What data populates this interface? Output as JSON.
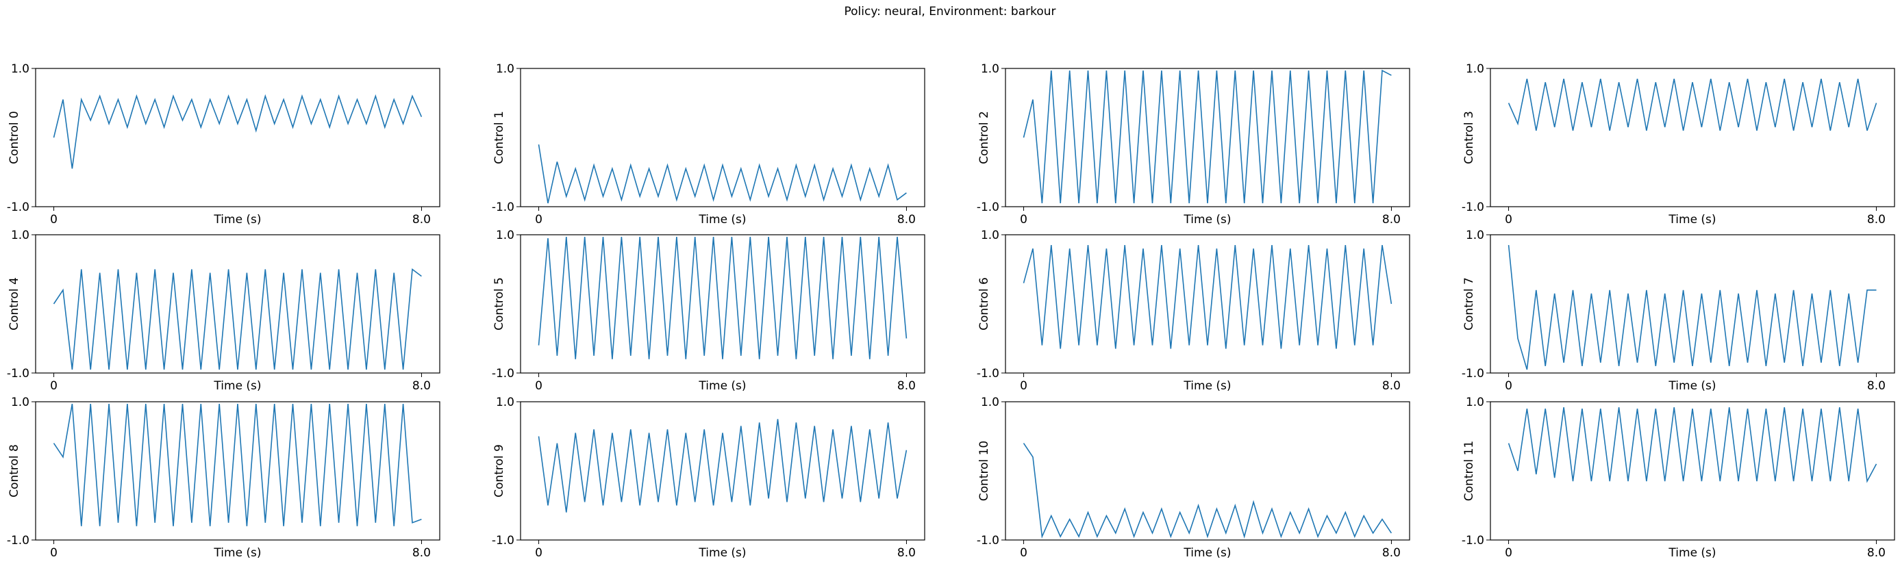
{
  "figure": {
    "title": "Policy: neural, Environment: barkour",
    "line_color": "#1f77b4"
  },
  "chart_data": {
    "type": "line",
    "grid": false,
    "x_range": [
      0,
      8.0
    ],
    "y_range": [
      -1.0,
      1.0
    ],
    "panels": [
      {
        "ylabel": "Control 0",
        "xlabel": "Time (s)",
        "xticks": [
          "0",
          "8.0"
        ],
        "yticks": [
          "-1.0",
          "1.0"
        ],
        "x": [
          0,
          0.2,
          0.4,
          0.6,
          0.8,
          1.0,
          1.2,
          1.4,
          1.6,
          1.8,
          2.0,
          2.2,
          2.4,
          2.6,
          2.8,
          3.0,
          3.2,
          3.4,
          3.6,
          3.8,
          4.0,
          4.2,
          4.4,
          4.6,
          4.8,
          5.0,
          5.2,
          5.4,
          5.6,
          5.8,
          6.0,
          6.2,
          6.4,
          6.6,
          6.8,
          7.0,
          7.2,
          7.4,
          7.6,
          7.8,
          8.0
        ],
        "y": [
          0.0,
          0.55,
          -0.45,
          0.55,
          0.25,
          0.6,
          0.2,
          0.55,
          0.15,
          0.6,
          0.2,
          0.55,
          0.15,
          0.6,
          0.25,
          0.55,
          0.15,
          0.55,
          0.2,
          0.6,
          0.2,
          0.55,
          0.1,
          0.6,
          0.2,
          0.55,
          0.15,
          0.6,
          0.2,
          0.55,
          0.15,
          0.6,
          0.2,
          0.55,
          0.2,
          0.6,
          0.15,
          0.55,
          0.2,
          0.6,
          0.3
        ]
      },
      {
        "ylabel": "Control 1",
        "xlabel": "Time (s)",
        "xticks": [
          "0",
          "8.0"
        ],
        "yticks": [
          "-1.0",
          "1.0"
        ],
        "x": [
          0,
          0.2,
          0.4,
          0.6,
          0.8,
          1.0,
          1.2,
          1.4,
          1.6,
          1.8,
          2.0,
          2.2,
          2.4,
          2.6,
          2.8,
          3.0,
          3.2,
          3.4,
          3.6,
          3.8,
          4.0,
          4.2,
          4.4,
          4.6,
          4.8,
          5.0,
          5.2,
          5.4,
          5.6,
          5.8,
          6.0,
          6.2,
          6.4,
          6.6,
          6.8,
          7.0,
          7.2,
          7.4,
          7.6,
          7.8,
          8.0
        ],
        "y": [
          -0.1,
          -0.95,
          -0.35,
          -0.85,
          -0.45,
          -0.9,
          -0.4,
          -0.85,
          -0.45,
          -0.9,
          -0.4,
          -0.85,
          -0.45,
          -0.85,
          -0.4,
          -0.9,
          -0.45,
          -0.85,
          -0.4,
          -0.9,
          -0.4,
          -0.85,
          -0.45,
          -0.9,
          -0.4,
          -0.85,
          -0.45,
          -0.9,
          -0.4,
          -0.85,
          -0.4,
          -0.9,
          -0.45,
          -0.85,
          -0.4,
          -0.9,
          -0.45,
          -0.85,
          -0.4,
          -0.9,
          -0.8
        ]
      },
      {
        "ylabel": "Control 2",
        "xlabel": "Time (s)",
        "xticks": [
          "0",
          "8.0"
        ],
        "yticks": [
          "-1.0",
          "1.0"
        ],
        "x": [
          0,
          0.2,
          0.4,
          0.6,
          0.8,
          1.0,
          1.2,
          1.4,
          1.6,
          1.8,
          2.0,
          2.2,
          2.4,
          2.6,
          2.8,
          3.0,
          3.2,
          3.4,
          3.6,
          3.8,
          4.0,
          4.2,
          4.4,
          4.6,
          4.8,
          5.0,
          5.2,
          5.4,
          5.6,
          5.8,
          6.0,
          6.2,
          6.4,
          6.6,
          6.8,
          7.0,
          7.2,
          7.4,
          7.6,
          7.8,
          8.0
        ],
        "y": [
          0.0,
          0.55,
          -0.95,
          0.97,
          -0.95,
          0.97,
          -0.95,
          0.97,
          -0.95,
          0.97,
          -0.95,
          0.97,
          -0.95,
          0.97,
          -0.95,
          0.97,
          -0.95,
          0.97,
          -0.95,
          0.97,
          -0.95,
          0.97,
          -0.95,
          0.97,
          -0.95,
          0.97,
          -0.95,
          0.97,
          -0.95,
          0.97,
          -0.95,
          0.97,
          -0.95,
          0.97,
          -0.95,
          0.97,
          -0.95,
          0.97,
          -0.95,
          0.97,
          0.9
        ]
      },
      {
        "ylabel": "Control 3",
        "xlabel": "Time (s)",
        "xticks": [
          "0",
          "8.0"
        ],
        "yticks": [
          "-1.0",
          "1.0"
        ],
        "x": [
          0,
          0.2,
          0.4,
          0.6,
          0.8,
          1.0,
          1.2,
          1.4,
          1.6,
          1.8,
          2.0,
          2.2,
          2.4,
          2.6,
          2.8,
          3.0,
          3.2,
          3.4,
          3.6,
          3.8,
          4.0,
          4.2,
          4.4,
          4.6,
          4.8,
          5.0,
          5.2,
          5.4,
          5.6,
          5.8,
          6.0,
          6.2,
          6.4,
          6.6,
          6.8,
          7.0,
          7.2,
          7.4,
          7.6,
          7.8,
          8.0
        ],
        "y": [
          0.5,
          0.2,
          0.85,
          0.1,
          0.8,
          0.15,
          0.85,
          0.1,
          0.8,
          0.15,
          0.85,
          0.1,
          0.8,
          0.15,
          0.85,
          0.1,
          0.8,
          0.15,
          0.85,
          0.1,
          0.8,
          0.15,
          0.85,
          0.1,
          0.8,
          0.15,
          0.85,
          0.1,
          0.8,
          0.15,
          0.85,
          0.1,
          0.8,
          0.15,
          0.85,
          0.1,
          0.8,
          0.15,
          0.85,
          0.1,
          0.5
        ]
      },
      {
        "ylabel": "Control 4",
        "xlabel": "Time (s)",
        "xticks": [
          "0",
          "8.0"
        ],
        "yticks": [
          "-1.0",
          "1.0"
        ],
        "x": [
          0,
          0.2,
          0.4,
          0.6,
          0.8,
          1.0,
          1.2,
          1.4,
          1.6,
          1.8,
          2.0,
          2.2,
          2.4,
          2.6,
          2.8,
          3.0,
          3.2,
          3.4,
          3.6,
          3.8,
          4.0,
          4.2,
          4.4,
          4.6,
          4.8,
          5.0,
          5.2,
          5.4,
          5.6,
          5.8,
          6.0,
          6.2,
          6.4,
          6.6,
          6.8,
          7.0,
          7.2,
          7.4,
          7.6,
          7.8,
          8.0
        ],
        "y": [
          0.0,
          0.2,
          -0.95,
          0.5,
          -0.95,
          0.45,
          -0.95,
          0.5,
          -0.95,
          0.45,
          -0.95,
          0.5,
          -0.95,
          0.45,
          -0.95,
          0.5,
          -0.95,
          0.45,
          -0.95,
          0.5,
          -0.95,
          0.45,
          -0.95,
          0.5,
          -0.95,
          0.45,
          -0.95,
          0.5,
          -0.95,
          0.45,
          -0.95,
          0.5,
          -0.95,
          0.45,
          -0.95,
          0.5,
          -0.95,
          0.45,
          -0.95,
          0.5,
          0.4
        ]
      },
      {
        "ylabel": "Control 5",
        "xlabel": "Time (s)",
        "xticks": [
          "0",
          "8.0"
        ],
        "yticks": [
          "-1.0",
          "1.0"
        ],
        "x": [
          0,
          0.2,
          0.4,
          0.6,
          0.8,
          1.0,
          1.2,
          1.4,
          1.6,
          1.8,
          2.0,
          2.2,
          2.4,
          2.6,
          2.8,
          3.0,
          3.2,
          3.4,
          3.6,
          3.8,
          4.0,
          4.2,
          4.4,
          4.6,
          4.8,
          5.0,
          5.2,
          5.4,
          5.6,
          5.8,
          6.0,
          6.2,
          6.4,
          6.6,
          6.8,
          7.0,
          7.2,
          7.4,
          7.6,
          7.8,
          8.0
        ],
        "y": [
          -0.6,
          0.95,
          -0.75,
          0.97,
          -0.8,
          0.97,
          -0.75,
          0.97,
          -0.8,
          0.97,
          -0.75,
          0.97,
          -0.8,
          0.97,
          -0.75,
          0.97,
          -0.8,
          0.97,
          -0.75,
          0.97,
          -0.8,
          0.97,
          -0.75,
          0.97,
          -0.8,
          0.97,
          -0.75,
          0.97,
          -0.8,
          0.97,
          -0.75,
          0.97,
          -0.8,
          0.97,
          -0.75,
          0.97,
          -0.8,
          0.97,
          -0.75,
          0.97,
          -0.5
        ]
      },
      {
        "ylabel": "Control 6",
        "xlabel": "Time (s)",
        "xticks": [
          "0",
          "8.0"
        ],
        "yticks": [
          "-1.0",
          "1.0"
        ],
        "x": [
          0,
          0.2,
          0.4,
          0.6,
          0.8,
          1.0,
          1.2,
          1.4,
          1.6,
          1.8,
          2.0,
          2.2,
          2.4,
          2.6,
          2.8,
          3.0,
          3.2,
          3.4,
          3.6,
          3.8,
          4.0,
          4.2,
          4.4,
          4.6,
          4.8,
          5.0,
          5.2,
          5.4,
          5.6,
          5.8,
          6.0,
          6.2,
          6.4,
          6.6,
          6.8,
          7.0,
          7.2,
          7.4,
          7.6,
          7.8,
          8.0
        ],
        "y": [
          0.3,
          0.8,
          -0.6,
          0.85,
          -0.65,
          0.8,
          -0.6,
          0.85,
          -0.6,
          0.8,
          -0.65,
          0.85,
          -0.6,
          0.8,
          -0.6,
          0.85,
          -0.65,
          0.8,
          -0.6,
          0.85,
          -0.6,
          0.8,
          -0.65,
          0.85,
          -0.6,
          0.8,
          -0.6,
          0.85,
          -0.65,
          0.8,
          -0.6,
          0.85,
          -0.6,
          0.8,
          -0.65,
          0.85,
          -0.6,
          0.8,
          -0.6,
          0.85,
          0.0
        ]
      },
      {
        "ylabel": "Control 7",
        "xlabel": "Time (s)",
        "xticks": [
          "0",
          "8.0"
        ],
        "yticks": [
          "-1.0",
          "1.0"
        ],
        "x": [
          0,
          0.2,
          0.4,
          0.6,
          0.8,
          1.0,
          1.2,
          1.4,
          1.6,
          1.8,
          2.0,
          2.2,
          2.4,
          2.6,
          2.8,
          3.0,
          3.2,
          3.4,
          3.6,
          3.8,
          4.0,
          4.2,
          4.4,
          4.6,
          4.8,
          5.0,
          5.2,
          5.4,
          5.6,
          5.8,
          6.0,
          6.2,
          6.4,
          6.6,
          6.8,
          7.0,
          7.2,
          7.4,
          7.6,
          7.8,
          8.0
        ],
        "y": [
          0.85,
          -0.5,
          -0.95,
          0.2,
          -0.9,
          0.15,
          -0.85,
          0.2,
          -0.9,
          0.15,
          -0.85,
          0.2,
          -0.9,
          0.15,
          -0.85,
          0.2,
          -0.9,
          0.15,
          -0.85,
          0.2,
          -0.9,
          0.15,
          -0.85,
          0.2,
          -0.9,
          0.15,
          -0.85,
          0.2,
          -0.9,
          0.15,
          -0.85,
          0.2,
          -0.9,
          0.15,
          -0.85,
          0.2,
          -0.9,
          0.15,
          -0.85,
          0.2,
          0.2
        ]
      },
      {
        "ylabel": "Control 8",
        "xlabel": "Time (s)",
        "xticks": [
          "0",
          "8.0"
        ],
        "yticks": [
          "-1.0",
          "1.0"
        ],
        "x": [
          0,
          0.2,
          0.4,
          0.6,
          0.8,
          1.0,
          1.2,
          1.4,
          1.6,
          1.8,
          2.0,
          2.2,
          2.4,
          2.6,
          2.8,
          3.0,
          3.2,
          3.4,
          3.6,
          3.8,
          4.0,
          4.2,
          4.4,
          4.6,
          4.8,
          5.0,
          5.2,
          5.4,
          5.6,
          5.8,
          6.0,
          6.2,
          6.4,
          6.6,
          6.8,
          7.0,
          7.2,
          7.4,
          7.6,
          7.8,
          8.0
        ],
        "y": [
          0.4,
          0.2,
          0.97,
          -0.8,
          0.97,
          -0.8,
          0.97,
          -0.75,
          0.97,
          -0.8,
          0.97,
          -0.75,
          0.97,
          -0.8,
          0.97,
          -0.75,
          0.97,
          -0.8,
          0.97,
          -0.75,
          0.97,
          -0.8,
          0.97,
          -0.75,
          0.97,
          -0.8,
          0.97,
          -0.75,
          0.97,
          -0.8,
          0.97,
          -0.75,
          0.97,
          -0.8,
          0.97,
          -0.75,
          0.97,
          -0.8,
          0.97,
          -0.75,
          -0.7
        ]
      },
      {
        "ylabel": "Control 9",
        "xlabel": "Time (s)",
        "xticks": [
          "0",
          "8.0"
        ],
        "yticks": [
          "-1.0",
          "1.0"
        ],
        "x": [
          0,
          0.2,
          0.4,
          0.6,
          0.8,
          1.0,
          1.2,
          1.4,
          1.6,
          1.8,
          2.0,
          2.2,
          2.4,
          2.6,
          2.8,
          3.0,
          3.2,
          3.4,
          3.6,
          3.8,
          4.0,
          4.2,
          4.4,
          4.6,
          4.8,
          5.0,
          5.2,
          5.4,
          5.6,
          5.8,
          6.0,
          6.2,
          6.4,
          6.6,
          6.8,
          7.0,
          7.2,
          7.4,
          7.6,
          7.8,
          8.0
        ],
        "y": [
          0.5,
          -0.5,
          0.4,
          -0.6,
          0.55,
          -0.45,
          0.6,
          -0.5,
          0.55,
          -0.45,
          0.6,
          -0.5,
          0.55,
          -0.45,
          0.6,
          -0.5,
          0.55,
          -0.45,
          0.6,
          -0.5,
          0.55,
          -0.45,
          0.65,
          -0.5,
          0.7,
          -0.4,
          0.75,
          -0.45,
          0.7,
          -0.4,
          0.65,
          -0.45,
          0.6,
          -0.4,
          0.65,
          -0.45,
          0.6,
          -0.4,
          0.7,
          -0.4,
          0.3
        ]
      },
      {
        "ylabel": "Control 10",
        "xlabel": "Time (s)",
        "xticks": [
          "0",
          "8.0"
        ],
        "yticks": [
          "-1.0",
          "1.0"
        ],
        "x": [
          0,
          0.2,
          0.4,
          0.6,
          0.8,
          1.0,
          1.2,
          1.4,
          1.6,
          1.8,
          2.0,
          2.2,
          2.4,
          2.6,
          2.8,
          3.0,
          3.2,
          3.4,
          3.6,
          3.8,
          4.0,
          4.2,
          4.4,
          4.6,
          4.8,
          5.0,
          5.2,
          5.4,
          5.6,
          5.8,
          6.0,
          6.2,
          6.4,
          6.6,
          6.8,
          7.0,
          7.2,
          7.4,
          7.6,
          7.8,
          8.0
        ],
        "y": [
          0.4,
          0.2,
          -0.95,
          -0.65,
          -0.95,
          -0.7,
          -0.95,
          -0.6,
          -0.95,
          -0.65,
          -0.9,
          -0.55,
          -0.95,
          -0.6,
          -0.9,
          -0.55,
          -0.95,
          -0.6,
          -0.9,
          -0.5,
          -0.95,
          -0.55,
          -0.9,
          -0.5,
          -0.95,
          -0.45,
          -0.9,
          -0.55,
          -0.95,
          -0.6,
          -0.9,
          -0.55,
          -0.95,
          -0.65,
          -0.9,
          -0.6,
          -0.95,
          -0.65,
          -0.9,
          -0.7,
          -0.9
        ]
      },
      {
        "ylabel": "Control 11",
        "xlabel": "Time (s)",
        "xticks": [
          "0",
          "8.0"
        ],
        "yticks": [
          "-1.0",
          "1.0"
        ],
        "x": [
          0,
          0.2,
          0.4,
          0.6,
          0.8,
          1.0,
          1.2,
          1.4,
          1.6,
          1.8,
          2.0,
          2.2,
          2.4,
          2.6,
          2.8,
          3.0,
          3.2,
          3.4,
          3.6,
          3.8,
          4.0,
          4.2,
          4.4,
          4.6,
          4.8,
          5.0,
          5.2,
          5.4,
          5.6,
          5.8,
          6.0,
          6.2,
          6.4,
          6.6,
          6.8,
          7.0,
          7.2,
          7.4,
          7.6,
          7.8,
          8.0
        ],
        "y": [
          0.4,
          0.0,
          0.9,
          -0.05,
          0.9,
          -0.1,
          0.92,
          -0.15,
          0.9,
          -0.15,
          0.9,
          -0.15,
          0.92,
          -0.15,
          0.9,
          -0.15,
          0.9,
          -0.15,
          0.92,
          -0.15,
          0.9,
          -0.15,
          0.9,
          -0.15,
          0.92,
          -0.15,
          0.9,
          -0.15,
          0.9,
          -0.15,
          0.92,
          -0.15,
          0.9,
          -0.15,
          0.9,
          -0.15,
          0.92,
          -0.15,
          0.9,
          -0.15,
          0.1
        ]
      }
    ]
  }
}
